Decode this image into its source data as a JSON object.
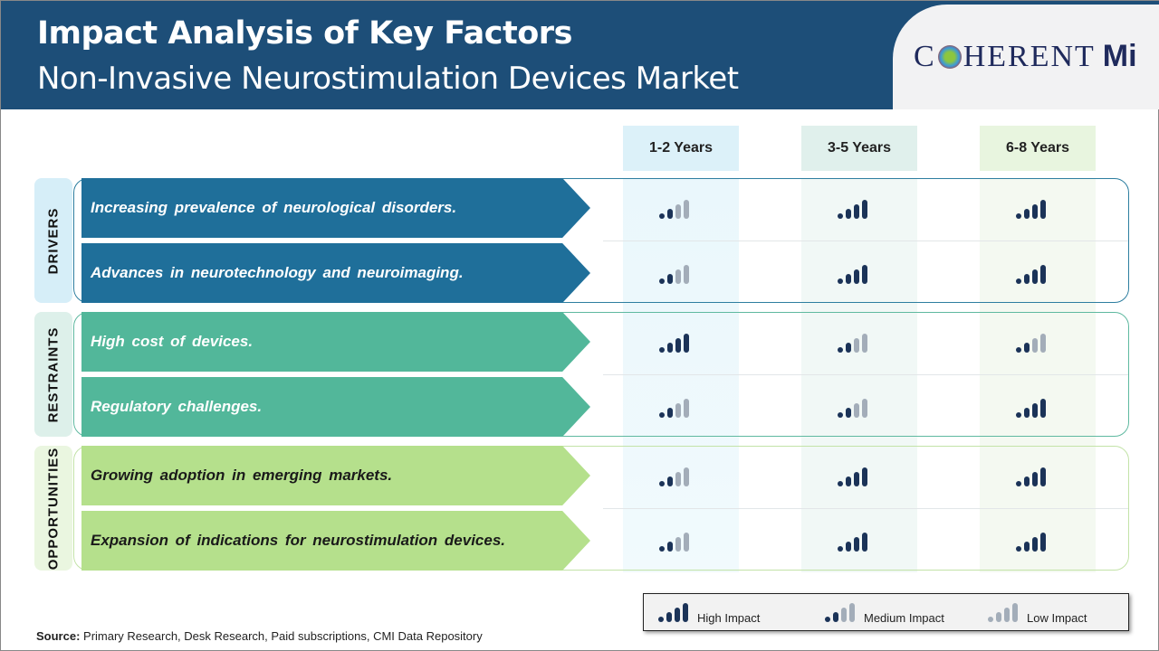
{
  "header": {
    "title": "Impact Analysis of Key Factors",
    "subtitle": "Non-Invasive Neurostimulation Devices Market",
    "logo_text": "COHERENT MI"
  },
  "columns": [
    "1-2 Years",
    "3-5 Years",
    "6-8 Years"
  ],
  "colors": {
    "header": "#1d4e78",
    "drivers": "#1f6f9a",
    "restraints": "#52b79a",
    "opportunities": "#b5e08c",
    "high": "#1b3358",
    "low": "#a3adb9"
  },
  "sections": [
    {
      "label": "DRIVERS",
      "rows": [
        {
          "text": "Increasing prevalence of neurological disorders.",
          "impact": [
            "Medium",
            "High",
            "High"
          ]
        },
        {
          "text": "Advances in neurotechnology and neuroimaging.",
          "impact": [
            "Medium",
            "High",
            "High"
          ]
        }
      ]
    },
    {
      "label": "RESTRAINTS",
      "rows": [
        {
          "text": "High cost of devices.",
          "impact": [
            "High",
            "Medium",
            "Medium"
          ]
        },
        {
          "text": "Regulatory challenges.",
          "impact": [
            "Medium",
            "Medium",
            "High"
          ]
        }
      ]
    },
    {
      "label": "OPPORTUNITIES",
      "rows": [
        {
          "text": "Growing adoption in emerging markets.",
          "impact": [
            "Medium",
            "High",
            "High"
          ]
        },
        {
          "text": "Expansion of indications for neurostimulation devices.",
          "impact": [
            "Medium",
            "High",
            "High"
          ]
        }
      ]
    }
  ],
  "legend": {
    "high": "High Impact",
    "medium": "Medium Impact",
    "low": "Low Impact"
  },
  "source": {
    "label": "Source:",
    "text": " Primary Research, Desk Research, Paid subscriptions, CMI Data Repository"
  }
}
